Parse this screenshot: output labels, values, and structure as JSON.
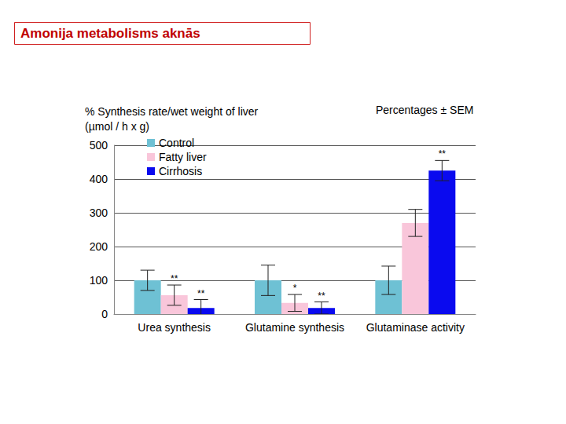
{
  "chart_data": {
    "type": "bar",
    "title": "Amonija metabolisms aknās",
    "ylabel": "% Synthesis rate/wet weight of liver\n(µmol / h x g)",
    "note": "Percentages ± SEM",
    "categories": [
      "Urea synthesis",
      "Glutamine synthesis",
      "Glutaminase activity"
    ],
    "series": [
      {
        "name": "Control",
        "color": "#6ec1d4",
        "values": [
          100,
          100,
          100
        ],
        "errors": [
          30,
          45,
          42
        ]
      },
      {
        "name": "Fatty liver",
        "color": "#f9c6da",
        "values": [
          56,
          33,
          270
        ],
        "errors": [
          30,
          25,
          40
        ],
        "annotations": [
          "**",
          "*",
          null
        ]
      },
      {
        "name": "Cirrhosis",
        "color": "#0a0aef",
        "values": [
          18,
          18,
          425
        ],
        "errors": [
          25,
          18,
          30
        ],
        "annotations": [
          "**",
          "**",
          "**"
        ]
      }
    ],
    "ylim": [
      0,
      500
    ],
    "yticks": [
      0,
      100,
      200,
      300,
      400,
      500
    ],
    "grid": true,
    "legend": "upper left"
  }
}
